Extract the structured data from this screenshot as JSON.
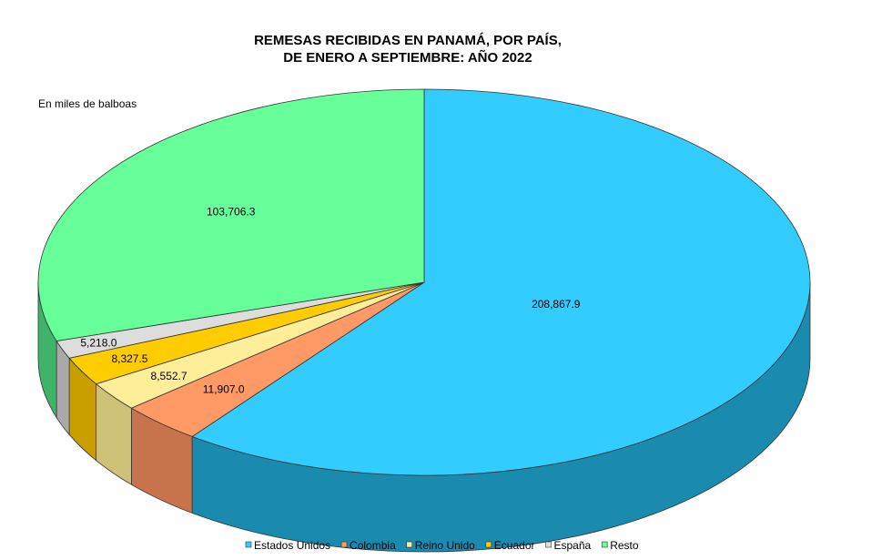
{
  "chart_data": {
    "type": "pie",
    "title": [
      "REMESAS RECIBIDAS EN PANAMÁ, POR PAÍS,",
      "DE ENERO A SEPTIEMBRE: AÑO 2022"
    ],
    "subtitle": "En miles de balboas",
    "legend_position": "bottom",
    "three_d": true,
    "slices": [
      {
        "name": "Estados Unidos",
        "value": 208867.9,
        "label": "208,867.9",
        "color": "#33CCFF",
        "side": "#1A8AAF"
      },
      {
        "name": "Colombia",
        "value": 11907.0,
        "label": "11,907.0",
        "color": "#FF9966",
        "side": "#C8734B"
      },
      {
        "name": "Reino Unido",
        "value": 8552.7,
        "label": "8,552.7",
        "color": "#FFEE99",
        "side": "#CFC078"
      },
      {
        "name": "Ecuador",
        "value": 8327.5,
        "label": "8,327.5",
        "color": "#FFCC00",
        "side": "#C99F00"
      },
      {
        "name": "España",
        "value": 5218.0,
        "label": "5,218.0",
        "color": "#DDDDDD",
        "side": "#A9A9A9"
      },
      {
        "name": "Resto",
        "value": 103706.3,
        "label": "103,706.3",
        "color": "#66FF99",
        "side": "#3FB36A"
      }
    ]
  }
}
